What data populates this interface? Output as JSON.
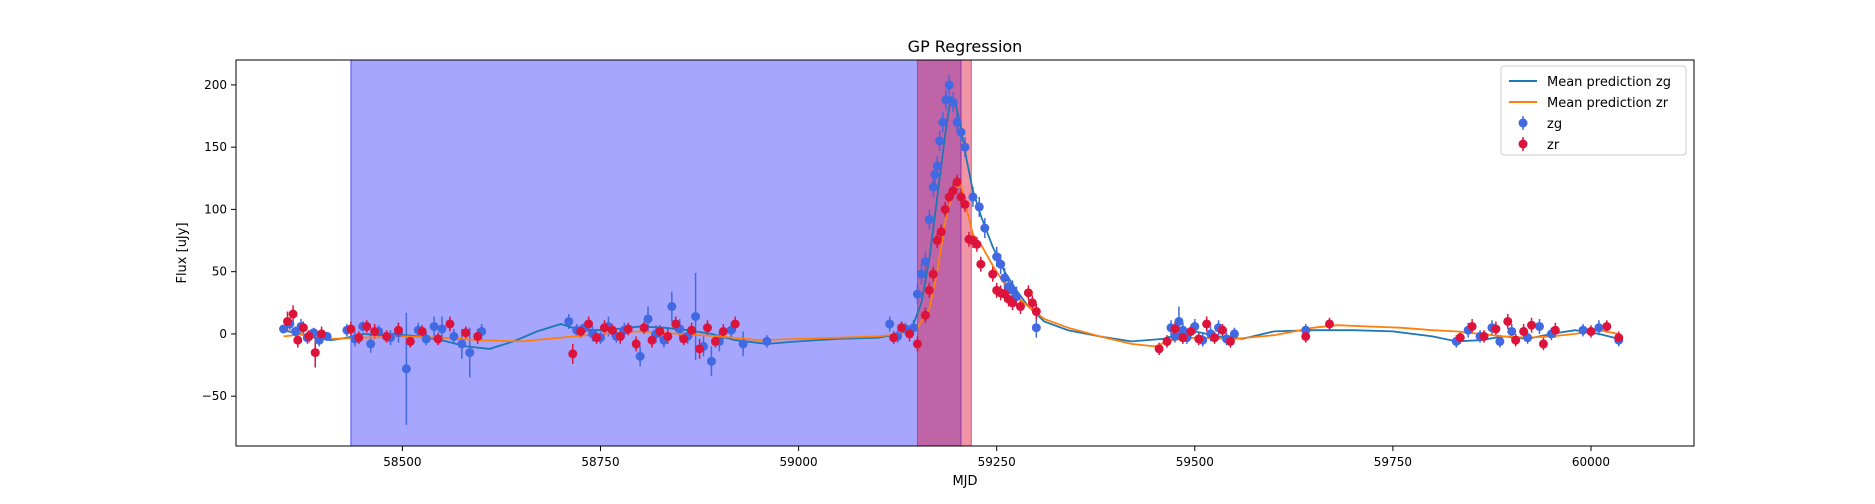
{
  "chart_data": {
    "type": "scatter",
    "title": "GP Regression",
    "xlabel": "MJD",
    "ylabel": "Flux [uJy]",
    "xlim": [
      58290,
      60130
    ],
    "ylim": [
      -90,
      220
    ],
    "xticks": [
      58500,
      58750,
      59000,
      59250,
      59500,
      59750,
      60000
    ],
    "yticks": [
      -50,
      0,
      50,
      100,
      150,
      200
    ],
    "grid": false,
    "legend_position": "top-right",
    "shaded_regions": [
      {
        "x0": 58435,
        "x1": 59205,
        "color": "#0000ff",
        "alpha": 0.35
      },
      {
        "x0": 59150,
        "x1": 59218,
        "color": "#dc143c",
        "alpha": 0.45
      }
    ],
    "lines": [
      {
        "name": "Mean prediction zg",
        "color": "#1f77b4",
        "x": [
          58350,
          58370,
          58390,
          58410,
          58430,
          58450,
          58470,
          58490,
          58520,
          58550,
          58580,
          58610,
          58640,
          58670,
          58700,
          58720,
          58745,
          58770,
          58800,
          58830,
          58860,
          58890,
          58920,
          58960,
          59000,
          59050,
          59100,
          59130,
          59145,
          59155,
          59165,
          59175,
          59185,
          59192,
          59198,
          59205,
          59212,
          59220,
          59230,
          59245,
          59260,
          59275,
          59290,
          59310,
          59340,
          59380,
          59420,
          59460,
          59480,
          59500,
          59530,
          59560,
          59600,
          59650,
          59700,
          59750,
          59800,
          59830,
          59860,
          59890,
          59920,
          59950,
          59980,
          60010,
          60035
        ],
        "y": [
          3,
          0,
          -3,
          -5,
          -3,
          0,
          -1,
          0,
          -2,
          -5,
          -10,
          -12,
          -6,
          2,
          8,
          4,
          3,
          4,
          6,
          5,
          3,
          0,
          -5,
          -8,
          -6,
          -4,
          -3,
          0,
          8,
          25,
          60,
          110,
          160,
          190,
          185,
          165,
          140,
          115,
          95,
          70,
          50,
          35,
          22,
          10,
          3,
          -2,
          -6,
          -4,
          0,
          2,
          -2,
          -4,
          2,
          3,
          3,
          2,
          -2,
          -6,
          -5,
          -2,
          -4,
          0,
          3,
          0,
          -4
        ]
      },
      {
        "name": "Mean prediction zr",
        "color": "#ff7f0e",
        "x": [
          58350,
          58380,
          58410,
          58450,
          58500,
          58550,
          58600,
          58650,
          58700,
          58750,
          58800,
          58850,
          58900,
          58950,
          59000,
          59050,
          59100,
          59130,
          59150,
          59165,
          59175,
          59185,
          59195,
          59205,
          59212,
          59220,
          59230,
          59245,
          59260,
          59275,
          59290,
          59310,
          59340,
          59380,
          59420,
          59450,
          59470,
          59500,
          59550,
          59600,
          59650,
          59680,
          59720,
          59760,
          59800,
          59830,
          59860,
          59890,
          59920,
          59950,
          59980,
          60010,
          60035
        ],
        "y": [
          -2,
          0,
          -4,
          -3,
          -2,
          -3,
          -5,
          -6,
          -3,
          0,
          2,
          0,
          -2,
          -5,
          -4,
          -3,
          -2,
          0,
          5,
          20,
          50,
          90,
          115,
          120,
          100,
          80,
          72,
          55,
          40,
          30,
          22,
          12,
          5,
          -2,
          -8,
          -10,
          -5,
          -3,
          -4,
          -1,
          5,
          7,
          6,
          5,
          3,
          2,
          0,
          -2,
          -3,
          -2,
          0,
          3,
          0
        ]
      }
    ],
    "scatter": [
      {
        "name": "zg",
        "color": "#4169e1",
        "points": [
          [
            58350,
            4,
            3
          ],
          [
            58358,
            8,
            5
          ],
          [
            58365,
            2,
            4
          ],
          [
            58372,
            6,
            6
          ],
          [
            58380,
            -3,
            5
          ],
          [
            58388,
            1,
            4
          ],
          [
            58395,
            -5,
            5
          ],
          [
            58405,
            -2,
            3
          ],
          [
            58430,
            3,
            5
          ],
          [
            58440,
            -4,
            6
          ],
          [
            58450,
            6,
            4
          ],
          [
            58460,
            -8,
            7
          ],
          [
            58470,
            2,
            5
          ],
          [
            58485,
            -3,
            6
          ],
          [
            58495,
            1,
            8
          ],
          [
            58505,
            -28,
            45
          ],
          [
            58520,
            3,
            6
          ],
          [
            58530,
            -4,
            5
          ],
          [
            58540,
            6,
            8
          ],
          [
            58550,
            4,
            10
          ],
          [
            58565,
            -2,
            6
          ],
          [
            58575,
            -8,
            12
          ],
          [
            58585,
            -15,
            20
          ],
          [
            58600,
            2,
            6
          ],
          [
            58710,
            10,
            6
          ],
          [
            58720,
            3,
            5
          ],
          [
            58730,
            5,
            4
          ],
          [
            58740,
            0,
            6
          ],
          [
            58750,
            -3,
            5
          ],
          [
            58760,
            6,
            8
          ],
          [
            58770,
            -2,
            5
          ],
          [
            58780,
            3,
            6
          ],
          [
            58800,
            -18,
            8
          ],
          [
            58810,
            12,
            10
          ],
          [
            58820,
            0,
            7
          ],
          [
            58830,
            -5,
            6
          ],
          [
            58840,
            22,
            12
          ],
          [
            58850,
            4,
            8
          ],
          [
            58860,
            -2,
            6
          ],
          [
            58870,
            14,
            35
          ],
          [
            58880,
            -10,
            8
          ],
          [
            58890,
            -22,
            12
          ],
          [
            58900,
            -6,
            8
          ],
          [
            58915,
            3,
            6
          ],
          [
            58930,
            -8,
            10
          ],
          [
            58960,
            -6,
            5
          ],
          [
            59115,
            8,
            6
          ],
          [
            59125,
            -2,
            5
          ],
          [
            59135,
            4,
            5
          ],
          [
            59145,
            5,
            6
          ],
          [
            59150,
            32,
            8
          ],
          [
            59155,
            48,
            8
          ],
          [
            59160,
            58,
            8
          ],
          [
            59165,
            92,
            8
          ],
          [
            59170,
            118,
            8
          ],
          [
            59172,
            128,
            8
          ],
          [
            59175,
            135,
            8
          ],
          [
            59178,
            155,
            8
          ],
          [
            59182,
            170,
            8
          ],
          [
            59186,
            188,
            8
          ],
          [
            59190,
            200,
            8
          ],
          [
            59195,
            186,
            8
          ],
          [
            59200,
            170,
            8
          ],
          [
            59205,
            162,
            8
          ],
          [
            59210,
            150,
            8
          ],
          [
            59220,
            110,
            8
          ],
          [
            59228,
            102,
            8
          ],
          [
            59235,
            85,
            8
          ],
          [
            59250,
            62,
            8
          ],
          [
            59255,
            56,
            8
          ],
          [
            59260,
            45,
            8
          ],
          [
            59265,
            38,
            8
          ],
          [
            59270,
            35,
            8
          ],
          [
            59275,
            30,
            8
          ],
          [
            59300,
            5,
            8
          ],
          [
            59470,
            5,
            6
          ],
          [
            59475,
            -2,
            5
          ],
          [
            59480,
            10,
            12
          ],
          [
            59485,
            3,
            6
          ],
          [
            59490,
            -3,
            5
          ],
          [
            59500,
            6,
            6
          ],
          [
            59510,
            -5,
            5
          ],
          [
            59520,
            0,
            6
          ],
          [
            59530,
            5,
            6
          ],
          [
            59540,
            -4,
            5
          ],
          [
            59550,
            0,
            5
          ],
          [
            59640,
            3,
            5
          ],
          [
            59830,
            -6,
            5
          ],
          [
            59845,
            3,
            6
          ],
          [
            59860,
            -2,
            5
          ],
          [
            59875,
            5,
            6
          ],
          [
            59885,
            -6,
            5
          ],
          [
            59900,
            2,
            6
          ],
          [
            59920,
            -3,
            5
          ],
          [
            59935,
            6,
            6
          ],
          [
            59950,
            0,
            5
          ],
          [
            59990,
            3,
            5
          ],
          [
            60010,
            5,
            6
          ],
          [
            60035,
            -5,
            5
          ]
        ]
      },
      {
        "name": "zr",
        "color": "#dc143c",
        "points": [
          [
            58355,
            10,
            8
          ],
          [
            58362,
            16,
            7
          ],
          [
            58368,
            -5,
            6
          ],
          [
            58375,
            5,
            5
          ],
          [
            58382,
            -2,
            5
          ],
          [
            58390,
            -15,
            12
          ],
          [
            58398,
            0,
            6
          ],
          [
            58435,
            4,
            6
          ],
          [
            58445,
            -3,
            5
          ],
          [
            58455,
            6,
            5
          ],
          [
            58465,
            2,
            6
          ],
          [
            58480,
            -2,
            5
          ],
          [
            58495,
            3,
            6
          ],
          [
            58510,
            -6,
            5
          ],
          [
            58525,
            2,
            5
          ],
          [
            58545,
            -4,
            5
          ],
          [
            58560,
            8,
            6
          ],
          [
            58580,
            1,
            5
          ],
          [
            58595,
            -2,
            6
          ],
          [
            58715,
            -16,
            8
          ],
          [
            58725,
            2,
            5
          ],
          [
            58735,
            8,
            6
          ],
          [
            58745,
            -3,
            5
          ],
          [
            58755,
            5,
            6
          ],
          [
            58765,
            3,
            5
          ],
          [
            58775,
            -2,
            6
          ],
          [
            58785,
            4,
            5
          ],
          [
            58795,
            -8,
            6
          ],
          [
            58805,
            5,
            5
          ],
          [
            58815,
            -5,
            6
          ],
          [
            58825,
            2,
            5
          ],
          [
            58835,
            -2,
            6
          ],
          [
            58845,
            8,
            6
          ],
          [
            58855,
            -4,
            5
          ],
          [
            58865,
            3,
            6
          ],
          [
            58875,
            -12,
            8
          ],
          [
            58885,
            5,
            6
          ],
          [
            58895,
            -6,
            5
          ],
          [
            58905,
            2,
            6
          ],
          [
            58920,
            8,
            6
          ],
          [
            59120,
            -3,
            5
          ],
          [
            59130,
            5,
            5
          ],
          [
            59140,
            0,
            6
          ],
          [
            59150,
            -8,
            6
          ],
          [
            59160,
            15,
            6
          ],
          [
            59165,
            35,
            6
          ],
          [
            59170,
            48,
            6
          ],
          [
            59175,
            75,
            6
          ],
          [
            59180,
            82,
            6
          ],
          [
            59185,
            100,
            6
          ],
          [
            59190,
            110,
            6
          ],
          [
            59195,
            115,
            6
          ],
          [
            59200,
            122,
            6
          ],
          [
            59205,
            110,
            6
          ],
          [
            59210,
            104,
            6
          ],
          [
            59215,
            76,
            6
          ],
          [
            59220,
            75,
            6
          ],
          [
            59225,
            72,
            6
          ],
          [
            59230,
            56,
            6
          ],
          [
            59245,
            48,
            6
          ],
          [
            59250,
            35,
            6
          ],
          [
            59255,
            33,
            6
          ],
          [
            59260,
            32,
            6
          ],
          [
            59265,
            28,
            6
          ],
          [
            59270,
            25,
            6
          ],
          [
            59280,
            22,
            6
          ],
          [
            59290,
            33,
            6
          ],
          [
            59295,
            25,
            6
          ],
          [
            59300,
            18,
            6
          ],
          [
            59455,
            -12,
            5
          ],
          [
            59465,
            -6,
            5
          ],
          [
            59475,
            4,
            6
          ],
          [
            59485,
            -3,
            5
          ],
          [
            59495,
            2,
            5
          ],
          [
            59505,
            -4,
            5
          ],
          [
            59515,
            8,
            6
          ],
          [
            59525,
            -3,
            5
          ],
          [
            59535,
            3,
            5
          ],
          [
            59545,
            -6,
            5
          ],
          [
            59640,
            -2,
            5
          ],
          [
            59670,
            8,
            5
          ],
          [
            59835,
            -3,
            5
          ],
          [
            59850,
            6,
            6
          ],
          [
            59865,
            -2,
            5
          ],
          [
            59880,
            4,
            6
          ],
          [
            59895,
            10,
            6
          ],
          [
            59905,
            -5,
            5
          ],
          [
            59915,
            2,
            6
          ],
          [
            59925,
            7,
            6
          ],
          [
            59940,
            -8,
            5
          ],
          [
            59955,
            3,
            6
          ],
          [
            60000,
            2,
            5
          ],
          [
            60020,
            6,
            5
          ],
          [
            60035,
            -3,
            5
          ]
        ]
      }
    ]
  }
}
